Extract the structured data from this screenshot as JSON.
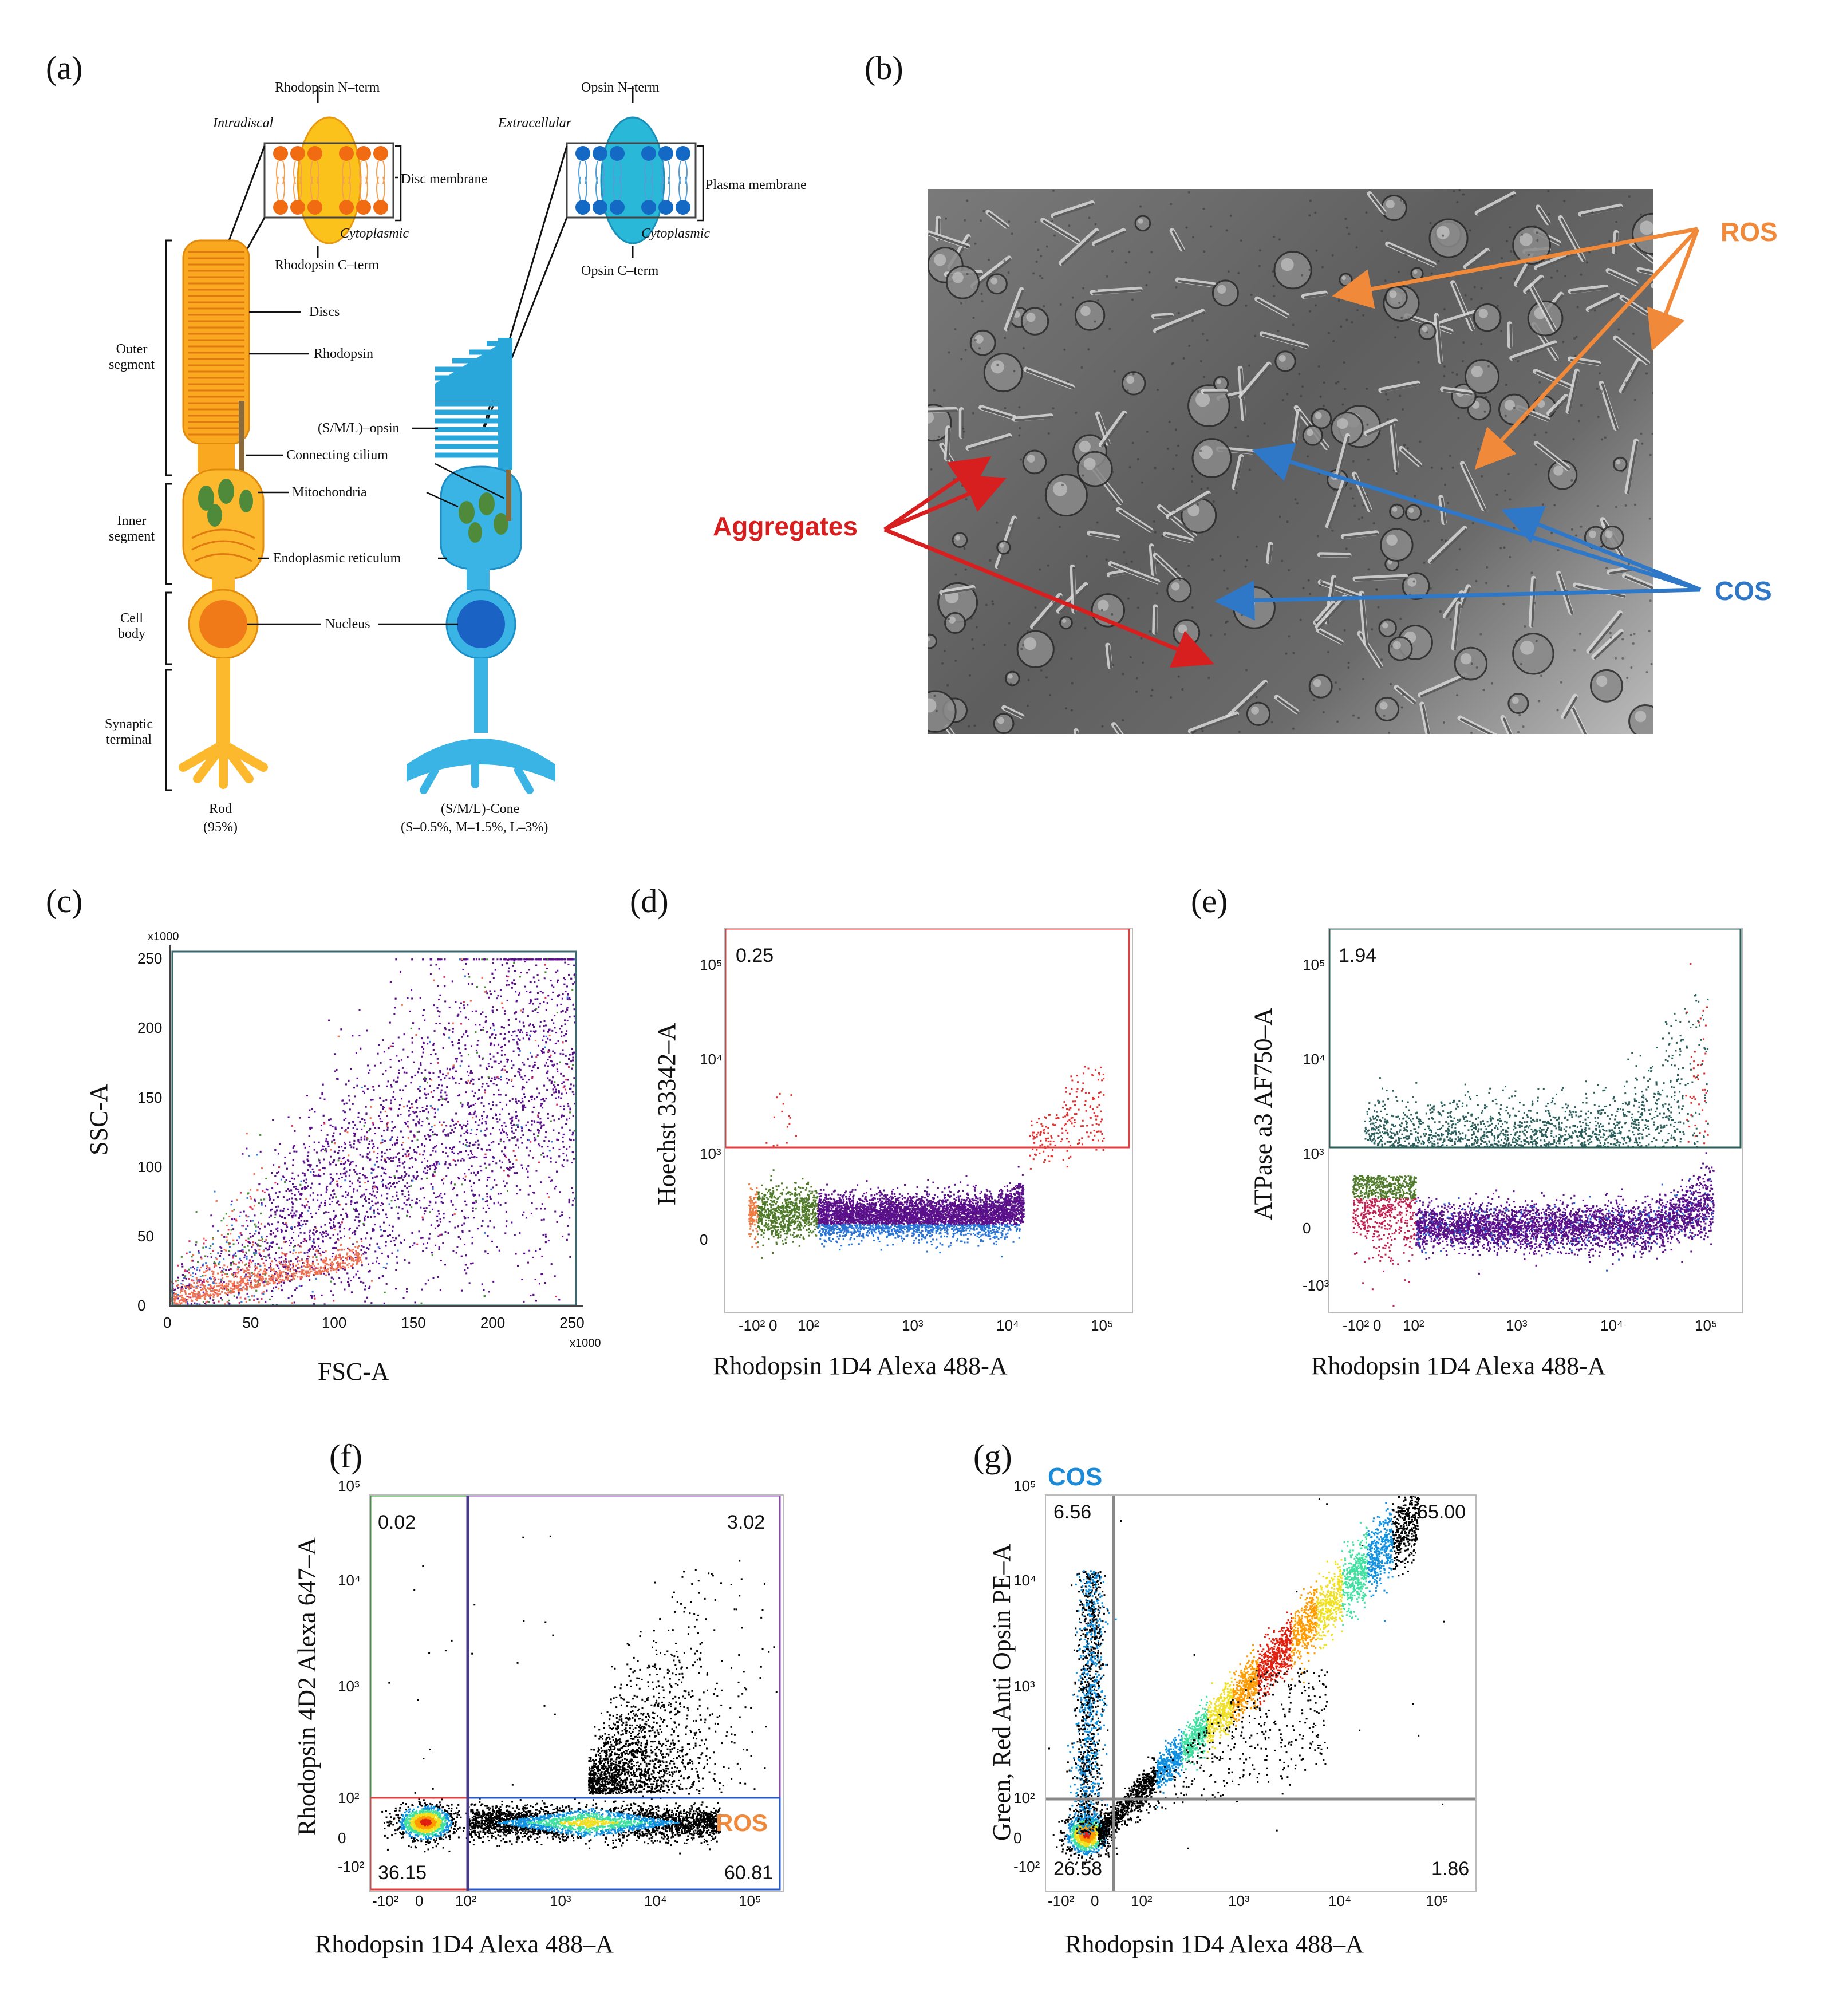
{
  "panel_letters": {
    "a": "(a)",
    "b": "(b)",
    "c": "(c)",
    "d": "(d)",
    "e": "(e)",
    "f": "(f)",
    "g": "(g)"
  },
  "panel_a": {
    "rod": {
      "n_term": "Rhodopsin N–term",
      "c_term": "Rhodopsin C–term",
      "intradiscal": "Intradiscal",
      "cytoplasmic": "Cytoplasmic",
      "membrane": "Disc membrane",
      "discs": "Discs",
      "rhodopsin": "Rhodopsin",
      "connecting_cilium": "Connecting cilium",
      "mitochondria": "Mitochondria",
      "er": "Endoplasmic reticulum",
      "nucleus": "Nucleus",
      "name": "Rod",
      "pct": "(95%)"
    },
    "cone": {
      "n_term": "Opsin N–term",
      "c_term": "Opsin C–term",
      "extracellular": "Extracellular",
      "cytoplasmic": "Cytoplasmic",
      "membrane": "Plasma membrane",
      "opsin": "(S/M/L)–opsin",
      "name": "(S/M/L)-Cone",
      "pct": "(S–0.5%, M–1.5%, L–3%)"
    },
    "regions": {
      "outer": "Outer segment",
      "inner": "Inner segment",
      "body": "Cell body",
      "synaptic": "Synaptic terminal"
    },
    "colors": {
      "rod": "#f7a21b",
      "rod_light": "#fcc24a",
      "cone": "#2aa6dc",
      "cone_light": "#5cc4ec",
      "mito": "#4e8a3a",
      "rod_head": "#f06b12",
      "cone_head": "#1469c4"
    }
  },
  "panel_b": {
    "ros": "ROS",
    "cos": "COS",
    "aggregates": "Aggregates",
    "colors": {
      "ros": "#f08a3a",
      "cos": "#2f78c8",
      "agg": "#d81f1f"
    }
  },
  "panel_c": {
    "xlabel": "FSC-A",
    "ylabel": "SSC-A",
    "x_mult": "x1000",
    "y_mult": "x1000",
    "xticks": [
      "0",
      "50",
      "100",
      "150",
      "200",
      "250"
    ],
    "yticks": [
      "0",
      "50",
      "100",
      "150",
      "200",
      "250"
    ]
  },
  "panel_d": {
    "xlabel": "Rhodopsin 1D4 Alexa 488-A",
    "ylabel": "Hoechst 33342–A",
    "gate": "0.25",
    "xticks": [
      "-10²",
      "0",
      "10²",
      "10³",
      "10⁴",
      "10⁵"
    ],
    "yticks": [
      "0",
      "10³",
      "10⁴",
      "10⁵"
    ]
  },
  "panel_e": {
    "xlabel": "Rhodopsin 1D4 Alexa 488-A",
    "ylabel": "ATPase a3 AF750–A",
    "gate": "1.94",
    "xticks": [
      "-10²",
      "0",
      "10²",
      "10³",
      "10⁴",
      "10⁵"
    ],
    "yticks": [
      "-10³",
      "0",
      "10³",
      "10⁴",
      "10⁵"
    ]
  },
  "panel_f": {
    "xlabel": "Rhodopsin 1D4 Alexa 488–A",
    "ylabel": "Rhodopsin 4D2 Alexa 647–A",
    "q_ul": "0.02",
    "q_ur": "3.02",
    "q_ll": "36.15",
    "q_lr": "60.81",
    "ros": "ROS",
    "xticks": [
      "-10²",
      "0",
      "10²",
      "10³",
      "10⁴",
      "10⁵"
    ],
    "yticks": [
      "-10²",
      "0",
      "10²",
      "10³",
      "10⁴",
      "10⁵"
    ]
  },
  "panel_g": {
    "xlabel": "Rhodopsin 1D4 Alexa 488–A",
    "ylabel": "Green, Red Anti Opsin PE–A",
    "q_ul": "6.56",
    "q_ur": "65.00",
    "q_ll": "26.58",
    "q_lr": "1.86",
    "cos": "COS",
    "xticks": [
      "-10²",
      "0",
      "10²",
      "10³",
      "10⁴",
      "10⁵"
    ],
    "yticks": [
      "-10²",
      "0",
      "10²",
      "10³",
      "10⁴",
      "10⁵"
    ]
  }
}
